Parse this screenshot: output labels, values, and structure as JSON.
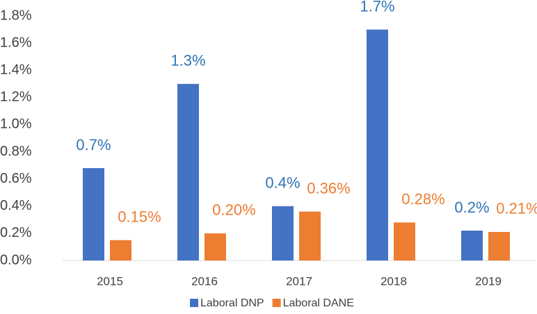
{
  "chart_data": {
    "type": "bar",
    "categories": [
      "2015",
      "2016",
      "2017",
      "2018",
      "2019"
    ],
    "series": [
      {
        "name": "Laboral DNP",
        "color": "#4472c4",
        "label_color": "#2e75b6",
        "values": [
          0.68,
          1.3,
          0.4,
          1.7,
          0.22
        ],
        "value_labels": [
          "0.7%",
          "1.3%",
          "0.4%",
          "1.7%",
          "0.2%"
        ]
      },
      {
        "name": "Laboral DANE",
        "color": "#ed7d31",
        "label_color": "#ed7d31",
        "values": [
          0.15,
          0.2,
          0.36,
          0.28,
          0.21
        ],
        "value_labels": [
          "0.15%",
          "0.20%",
          "0.36%",
          "0.28%",
          "0.21%"
        ]
      }
    ],
    "ylim": [
      0,
      1.8
    ],
    "yticks": [
      {
        "value": 0,
        "label": "0.0%"
      },
      {
        "value": 0.2,
        "label": "0.2%"
      },
      {
        "value": 0.4,
        "label": "0.4%"
      },
      {
        "value": 0.6,
        "label": "0.6%"
      },
      {
        "value": 0.8,
        "label": "0.8%"
      },
      {
        "value": 1.0,
        "label": "1.0%"
      },
      {
        "value": 1.2,
        "label": "1.2%"
      },
      {
        "value": 1.4,
        "label": "1.4%"
      },
      {
        "value": 1.6,
        "label": "1.6%"
      },
      {
        "value": 1.8,
        "label": "1.8%"
      }
    ],
    "grid": false,
    "legend": "bottom"
  }
}
